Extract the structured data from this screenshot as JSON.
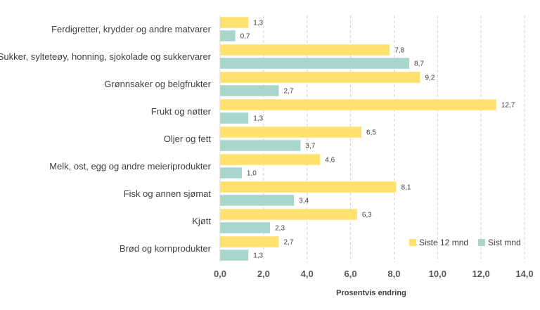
{
  "chart_data": {
    "type": "bar",
    "orientation": "horizontal",
    "categories": [
      "Ferdigretter, krydder og andre matvarer",
      "Sukker, sylteteøy, honning, sjokolade og sukkervarer",
      "Grønnsaker og belgfrukter",
      "Frukt og nøtter",
      "Oljer og fett",
      "Melk, ost, egg og andre meieriprodukter",
      "Fisk og annen sjømat",
      "Kjøtt",
      "Brød og kornprodukter"
    ],
    "series": [
      {
        "name": "Siste 12 mnd",
        "color": "#FFE16E",
        "values": [
          1.3,
          7.8,
          9.2,
          12.7,
          6.5,
          4.6,
          8.1,
          6.3,
          2.7
        ],
        "labels": [
          "1,3",
          "7,8",
          "9,2",
          "12,7",
          "6,5",
          "4,6",
          "8,1",
          "6,3",
          "2,7"
        ]
      },
      {
        "name": "Sist mnd",
        "color": "#A8D5CC",
        "values": [
          0.7,
          8.7,
          2.7,
          1.3,
          3.7,
          1.0,
          3.4,
          2.3,
          1.3
        ],
        "labels": [
          "0,7",
          "8,7",
          "2,7",
          "1,3",
          "3,7",
          "1,0",
          "3,4",
          "2,3",
          "1,3"
        ]
      }
    ],
    "xlabel": "Prosentvis endring",
    "xlim": [
      0,
      14
    ],
    "xticks": [
      0,
      2,
      4,
      6,
      8,
      10,
      12,
      14
    ],
    "xtick_labels": [
      "0,0",
      "2,0",
      "4,0",
      "6,0",
      "8,0",
      "10,0",
      "12,0",
      "14,0"
    ],
    "grid": "vertical dashed",
    "legend_position": "bottom-right"
  }
}
